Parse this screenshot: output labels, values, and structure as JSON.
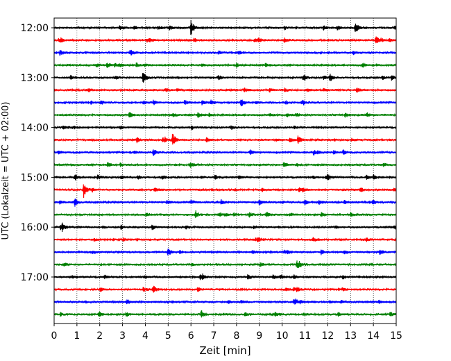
{
  "chart_data": {
    "type": "line",
    "subtype": "helicorder",
    "xlabel": "Zeit  [min]",
    "ylabel": "UTC (Lokalzeit = UTC + 02:00)",
    "xlim": [
      0,
      15
    ],
    "x_ticks": [
      "0",
      "1",
      "2",
      "3",
      "4",
      "5",
      "6",
      "7",
      "8",
      "9",
      "10",
      "11",
      "12",
      "13",
      "14",
      "15"
    ],
    "y_tick_labels": [
      "12:00",
      "13:00",
      "14:00",
      "15:00",
      "16:00",
      "17:00"
    ],
    "start_time": "12:00",
    "trace_interval_min": 15,
    "trace_count": 24,
    "trace_colors": [
      "#000000",
      "#ff0000",
      "#0000ff",
      "#008000"
    ],
    "grid": {
      "x": "dotted",
      "y": "none"
    },
    "noise_amplitude": 0.12,
    "events": [
      {
        "trace": 0,
        "x": 6.0,
        "amp": 1.0
      },
      {
        "trace": 0,
        "x": 13.2,
        "amp": 0.45
      },
      {
        "trace": 1,
        "x": 14.1,
        "amp": 0.4
      },
      {
        "trace": 1,
        "x": 10.1,
        "amp": 0.25
      },
      {
        "trace": 4,
        "x": 3.9,
        "amp": 0.85
      },
      {
        "trace": 4,
        "x": 12.1,
        "amp": 0.45
      },
      {
        "trace": 4,
        "x": 7.2,
        "amp": 0.3
      },
      {
        "trace": 4,
        "x": 14.8,
        "amp": 0.3
      },
      {
        "trace": 6,
        "x": 8.2,
        "amp": 0.5
      },
      {
        "trace": 7,
        "x": 3.3,
        "amp": 0.45
      },
      {
        "trace": 7,
        "x": 6.3,
        "amp": 0.3
      },
      {
        "trace": 9,
        "x": 5.2,
        "amp": 0.85
      },
      {
        "trace": 9,
        "x": 10.7,
        "amp": 0.55
      },
      {
        "trace": 12,
        "x": 0.9,
        "amp": 0.4
      },
      {
        "trace": 12,
        "x": 14.0,
        "amp": 0.3
      },
      {
        "trace": 13,
        "x": 1.3,
        "amp": 1.0
      },
      {
        "trace": 13,
        "x": 4.4,
        "amp": 0.3
      },
      {
        "trace": 14,
        "x": 0.9,
        "amp": 0.5
      },
      {
        "trace": 14,
        "x": 9.0,
        "amp": 0.35
      },
      {
        "trace": 14,
        "x": 6.0,
        "amp": 0.25
      },
      {
        "trace": 15,
        "x": 6.2,
        "amp": 0.5
      },
      {
        "trace": 16,
        "x": 0.35,
        "amp": 0.45
      },
      {
        "trace": 16,
        "x": 4.3,
        "amp": 0.35
      },
      {
        "trace": 16,
        "x": 15.0,
        "amp": 0.3
      },
      {
        "trace": 20,
        "x": 8.5,
        "amp": 0.35
      },
      {
        "trace": 20,
        "x": 9.6,
        "amp": 0.3
      },
      {
        "trace": 21,
        "x": 6.3,
        "amp": 0.25
      },
      {
        "trace": 22,
        "x": 10.5,
        "amp": 0.3
      },
      {
        "trace": 22,
        "x": 3.2,
        "amp": 0.25
      }
    ]
  }
}
